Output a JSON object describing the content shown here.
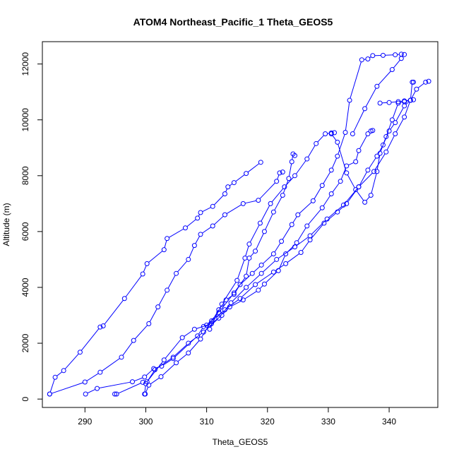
{
  "chart_data": {
    "type": "scatter",
    "title": "ATOM4 Northeast_Pacific_1 Theta_GEOS5",
    "xlabel": "Theta_GEOS5",
    "ylabel": "Altitude (m)",
    "xlim": [
      283,
      348
    ],
    "ylim": [
      -300,
      12800
    ],
    "x_ticks": [
      290,
      300,
      310,
      320,
      330,
      340
    ],
    "y_ticks": [
      0,
      2000,
      4000,
      6000,
      8000,
      10000,
      12000
    ],
    "color": "#0000ff",
    "grid": false,
    "series": [
      {
        "values": [
          [
            284.2,
            180
          ],
          [
            285.1,
            780
          ],
          [
            286.5,
            1020
          ],
          [
            289.2,
            1680
          ],
          [
            292.5,
            2580
          ],
          [
            293.0,
            2620
          ],
          [
            296.5,
            3600
          ],
          [
            299.5,
            4480
          ],
          [
            300.2,
            4850
          ],
          [
            303.0,
            5350
          ],
          [
            303.5,
            5750
          ],
          [
            306.5,
            6130
          ],
          [
            308.5,
            6480
          ],
          [
            309.0,
            6680
          ],
          [
            311.0,
            6900
          ],
          [
            313.0,
            7350
          ],
          [
            313.5,
            7600
          ],
          [
            314.5,
            7750
          ],
          [
            316.5,
            8080
          ],
          [
            318.9,
            8480
          ]
        ]
      },
      {
        "values": [
          [
            284.2,
            180
          ],
          [
            290.0,
            610
          ],
          [
            292.5,
            960
          ],
          [
            296.0,
            1500
          ],
          [
            298.0,
            2100
          ],
          [
            300.5,
            2700
          ],
          [
            302.0,
            3300
          ],
          [
            303.5,
            3900
          ],
          [
            305.0,
            4500
          ],
          [
            307.0,
            5000
          ],
          [
            308.0,
            5500
          ],
          [
            309.0,
            5900
          ],
          [
            311.0,
            6200
          ],
          [
            313.0,
            6600
          ],
          [
            316.0,
            7000
          ],
          [
            318.5,
            7120
          ],
          [
            321.5,
            7800
          ],
          [
            322.0,
            8100
          ],
          [
            322.5,
            8130
          ]
        ]
      },
      {
        "values": [
          [
            290.1,
            180
          ],
          [
            292.0,
            380
          ],
          [
            297.8,
            620
          ],
          [
            299.8,
            790
          ],
          [
            301.3,
            1090
          ],
          [
            302.6,
            1180
          ],
          [
            304.5,
            1450
          ],
          [
            308.5,
            2260
          ],
          [
            309.5,
            2600
          ],
          [
            310.5,
            2650
          ],
          [
            312.0,
            3200
          ],
          [
            313.2,
            3550
          ],
          [
            314.5,
            3750
          ],
          [
            315.5,
            4100
          ],
          [
            317.5,
            4500
          ],
          [
            319.0,
            4800
          ],
          [
            321.0,
            5200
          ],
          [
            322.3,
            5650
          ],
          [
            324.0,
            6250
          ],
          [
            325.0,
            6600
          ],
          [
            327.5,
            7100
          ],
          [
            329.0,
            7650
          ],
          [
            330.5,
            8200
          ],
          [
            331.5,
            8700
          ],
          [
            332.8,
            9550
          ],
          [
            333.5,
            10700
          ],
          [
            335.5,
            12150
          ],
          [
            336.5,
            12180
          ],
          [
            337.3,
            12300
          ],
          [
            339.0,
            12310
          ],
          [
            341.0,
            12330
          ],
          [
            342.0,
            12350
          ],
          [
            342.5,
            12340
          ]
        ]
      },
      {
        "values": [
          [
            294.9,
            180
          ],
          [
            295.2,
            180
          ],
          [
            299.5,
            600
          ],
          [
            300.2,
            620
          ],
          [
            303.0,
            1400
          ],
          [
            306.0,
            2200
          ],
          [
            308.0,
            2500
          ],
          [
            310.8,
            2700
          ],
          [
            312.5,
            3000
          ],
          [
            313.8,
            3300
          ],
          [
            316.0,
            3550
          ],
          [
            318.5,
            3900
          ],
          [
            319.5,
            4120
          ],
          [
            321.8,
            4600
          ],
          [
            323.0,
            5200
          ],
          [
            324.8,
            5600
          ],
          [
            326.5,
            6200
          ],
          [
            329.0,
            6850
          ],
          [
            330.5,
            7350
          ],
          [
            332.0,
            7800
          ],
          [
            333.0,
            8350
          ],
          [
            334.5,
            8500
          ],
          [
            335.0,
            8900
          ],
          [
            336.5,
            9500
          ],
          [
            337.0,
            9600
          ],
          [
            337.3,
            9620
          ]
        ]
      },
      {
        "values": [
          [
            299.9,
            180
          ],
          [
            300.5,
            500
          ],
          [
            302.5,
            800
          ],
          [
            305.0,
            1300
          ],
          [
            307.0,
            1650
          ],
          [
            309.0,
            2150
          ],
          [
            310.8,
            2800
          ],
          [
            313.0,
            3200
          ],
          [
            315.5,
            3600
          ],
          [
            318.0,
            4100
          ],
          [
            321.0,
            4550
          ],
          [
            323.0,
            4850
          ],
          [
            325.5,
            5250
          ],
          [
            327.0,
            5700
          ],
          [
            329.3,
            6300
          ],
          [
            331.5,
            6700
          ],
          [
            333.0,
            7000
          ],
          [
            335.0,
            7600
          ],
          [
            336.5,
            8200
          ],
          [
            338.0,
            8700
          ],
          [
            339.0,
            9100
          ],
          [
            340.0,
            9600
          ],
          [
            341.0,
            9900
          ],
          [
            342.5,
            10500
          ],
          [
            343.5,
            10700
          ],
          [
            344.0,
            10720
          ]
        ]
      },
      {
        "values": [
          [
            299.8,
            180
          ],
          [
            300.0,
            550
          ],
          [
            301.5,
            1050
          ],
          [
            304.5,
            1500
          ],
          [
            307.0,
            2000
          ],
          [
            309.5,
            2400
          ],
          [
            312.0,
            2900
          ],
          [
            314.0,
            3450
          ],
          [
            316.5,
            4000
          ],
          [
            319.0,
            4500
          ],
          [
            321.5,
            5000
          ],
          [
            324.5,
            5450
          ],
          [
            327.0,
            5850
          ],
          [
            329.8,
            6450
          ],
          [
            332.5,
            6950
          ],
          [
            335.0,
            7600
          ],
          [
            337.5,
            8150
          ],
          [
            339.5,
            8850
          ],
          [
            341.0,
            9500
          ],
          [
            342.5,
            10100
          ],
          [
            343.5,
            10700
          ],
          [
            344.5,
            11100
          ],
          [
            346.0,
            11350
          ],
          [
            346.5,
            11380
          ]
        ]
      },
      {
        "values": [
          [
            310.0,
            2650
          ],
          [
            312.0,
            3100
          ],
          [
            314.5,
            3800
          ],
          [
            316.5,
            4400
          ],
          [
            317.0,
            5050
          ],
          [
            318.0,
            5300
          ],
          [
            319.5,
            6000
          ],
          [
            321.0,
            6700
          ],
          [
            322.5,
            7300
          ],
          [
            323.5,
            7900
          ],
          [
            324.0,
            8500
          ],
          [
            324.2,
            8780
          ],
          [
            324.5,
            8720
          ]
        ]
      },
      {
        "values": [
          [
            310.5,
            2500
          ],
          [
            312.5,
            3400
          ],
          [
            315.0,
            4250
          ],
          [
            316.3,
            5050
          ],
          [
            317.0,
            5550
          ],
          [
            318.8,
            6300
          ],
          [
            320.5,
            7000
          ],
          [
            322.8,
            7600
          ],
          [
            324.5,
            8000
          ],
          [
            326.5,
            8600
          ],
          [
            328.0,
            9150
          ],
          [
            329.5,
            9500
          ],
          [
            330.5,
            9530
          ],
          [
            331.0,
            9540
          ]
        ]
      },
      {
        "values": [
          [
            330.5,
            9500
          ],
          [
            331.5,
            9200
          ],
          [
            333.0,
            8100
          ],
          [
            334.5,
            7500
          ],
          [
            336.0,
            7050
          ],
          [
            337.0,
            7300
          ],
          [
            338.0,
            8150
          ],
          [
            338.5,
            8800
          ],
          [
            339.5,
            9400
          ],
          [
            340.5,
            10000
          ],
          [
            341.5,
            10600
          ],
          [
            342.5,
            10650
          ],
          [
            343.5,
            10700
          ]
        ]
      },
      {
        "values": [
          [
            334.0,
            9500
          ],
          [
            336.0,
            10400
          ],
          [
            338.0,
            11200
          ],
          [
            340.5,
            11800
          ],
          [
            342.0,
            12200
          ]
        ]
      },
      {
        "values": [
          [
            338.5,
            10600
          ],
          [
            340.0,
            10620
          ],
          [
            341.5,
            10650
          ],
          [
            342.5,
            10680
          ],
          [
            343.5,
            10700
          ],
          [
            343.8,
            11350
          ],
          [
            344.0,
            11350
          ]
        ]
      }
    ]
  }
}
